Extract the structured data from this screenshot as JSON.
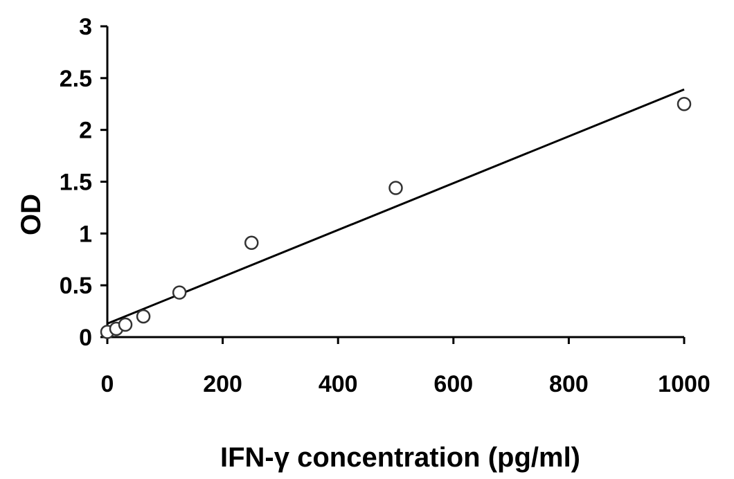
{
  "chart_data": {
    "type": "scatter",
    "xlabel": "IFN-γ concentration (pg/ml)",
    "ylabel": "OD",
    "xlim": [
      0,
      1000
    ],
    "ylim": [
      0,
      3
    ],
    "x_ticks": [
      0,
      200,
      400,
      600,
      800,
      1000
    ],
    "y_ticks": [
      0,
      0.5,
      1,
      1.5,
      2,
      2.5,
      3
    ],
    "x_tick_labels": [
      "0",
      "200",
      "400",
      "600",
      "800",
      "1000"
    ],
    "y_tick_labels": [
      "0",
      "0.5",
      "1",
      "1.5",
      "2",
      "2.5",
      "3"
    ],
    "grid": false,
    "legend": "none",
    "series": [
      {
        "marker": "open-circle",
        "points": [
          {
            "x": 0,
            "y": 0.05
          },
          {
            "x": 15.6,
            "y": 0.08
          },
          {
            "x": 31.25,
            "y": 0.12
          },
          {
            "x": 62.5,
            "y": 0.2
          },
          {
            "x": 125,
            "y": 0.43
          },
          {
            "x": 250,
            "y": 0.91
          },
          {
            "x": 500,
            "y": 1.44
          },
          {
            "x": 1000,
            "y": 2.25
          }
        ]
      }
    ],
    "trendline": {
      "type": "linear",
      "start": {
        "x": 0,
        "y": 0.13
      },
      "end": {
        "x": 1000,
        "y": 2.39
      }
    },
    "colors": {
      "axis": "#000000",
      "marker_stroke": "#333333",
      "marker_fill": "#ffffff",
      "trendline": "#000000"
    }
  }
}
